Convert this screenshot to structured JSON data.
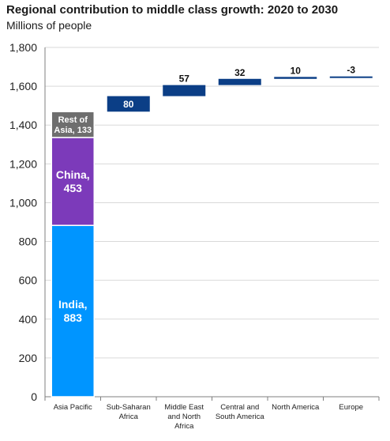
{
  "title": "Regional contribution to middle class growth: 2020 to 2030",
  "subtitle": "Millions of people",
  "chart_data": {
    "type": "bar",
    "subtype": "waterfall",
    "ylim": [
      0,
      1800
    ],
    "yticks": [
      "0",
      "200",
      "400",
      "600",
      "800",
      "1,000",
      "1,200",
      "1,400",
      "1,600",
      "1,800"
    ],
    "grid": true,
    "categories": [
      [
        "Asia Pacific"
      ],
      [
        "Sub-Saharan",
        "Africa"
      ],
      [
        "Middle East",
        "and North",
        "Africa"
      ],
      [
        "Central and",
        "South America"
      ],
      [
        "North America"
      ],
      [
        "Europe"
      ]
    ],
    "stack": [
      {
        "label": [
          "India,",
          "883"
        ],
        "value": 883,
        "color": "#0095ff"
      },
      {
        "label": [
          "China,",
          "453"
        ],
        "value": 453,
        "color": "#7c3aba"
      },
      {
        "label": [
          "Rest of",
          "Asia, 133"
        ],
        "value": 133,
        "color": "#6e6e6e"
      }
    ],
    "steps": [
      {
        "label": "80",
        "value": 80,
        "color": "#0b3e86"
      },
      {
        "label": "57",
        "value": 57,
        "color": "#0b3e86"
      },
      {
        "label": "32",
        "value": 32,
        "color": "#0b3e86"
      },
      {
        "label": "10",
        "value": 10,
        "color": "#0b3e86"
      },
      {
        "label": "-3",
        "value": -3,
        "color": "#0b3e86"
      }
    ]
  }
}
